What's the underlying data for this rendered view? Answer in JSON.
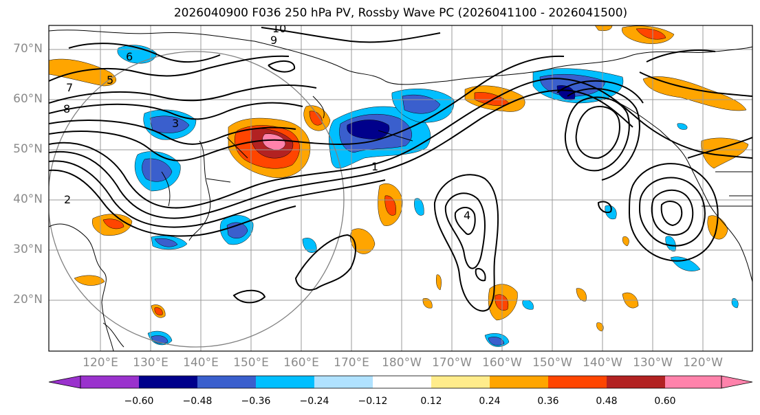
{
  "title": "2026040900 F036 250 hPa PV, Rossby Wave PC (2026041100 - 2026041500)",
  "lat_labels": [
    "70°N",
    "60°N",
    "50°N",
    "40°N",
    "30°N",
    "20°N"
  ],
  "lon_labels": [
    "120°E",
    "130°E",
    "140°E",
    "150°E",
    "160°E",
    "170°E",
    "180°W",
    "170°W",
    "160°W",
    "150°W",
    "140°W",
    "130°W",
    "120°W"
  ],
  "colorbar": {
    "ticks": [
      "−0.60",
      "−0.48",
      "−0.36",
      "−0.24",
      "−0.12",
      "0.12",
      "0.24",
      "0.36",
      "0.48",
      "0.60"
    ],
    "colors": [
      "#9a32cd",
      "#00008b",
      "#3a5fcd",
      "#00bfff",
      "#b0e2ff",
      "#ffffff",
      "#ffec8b",
      "#ffa500",
      "#ff4500",
      "#b22222",
      "#ff82ab"
    ]
  },
  "contour_labels": [
    "10",
    "9",
    "8",
    "7",
    "6",
    "5",
    "4",
    "3",
    "2",
    "1"
  ]
}
